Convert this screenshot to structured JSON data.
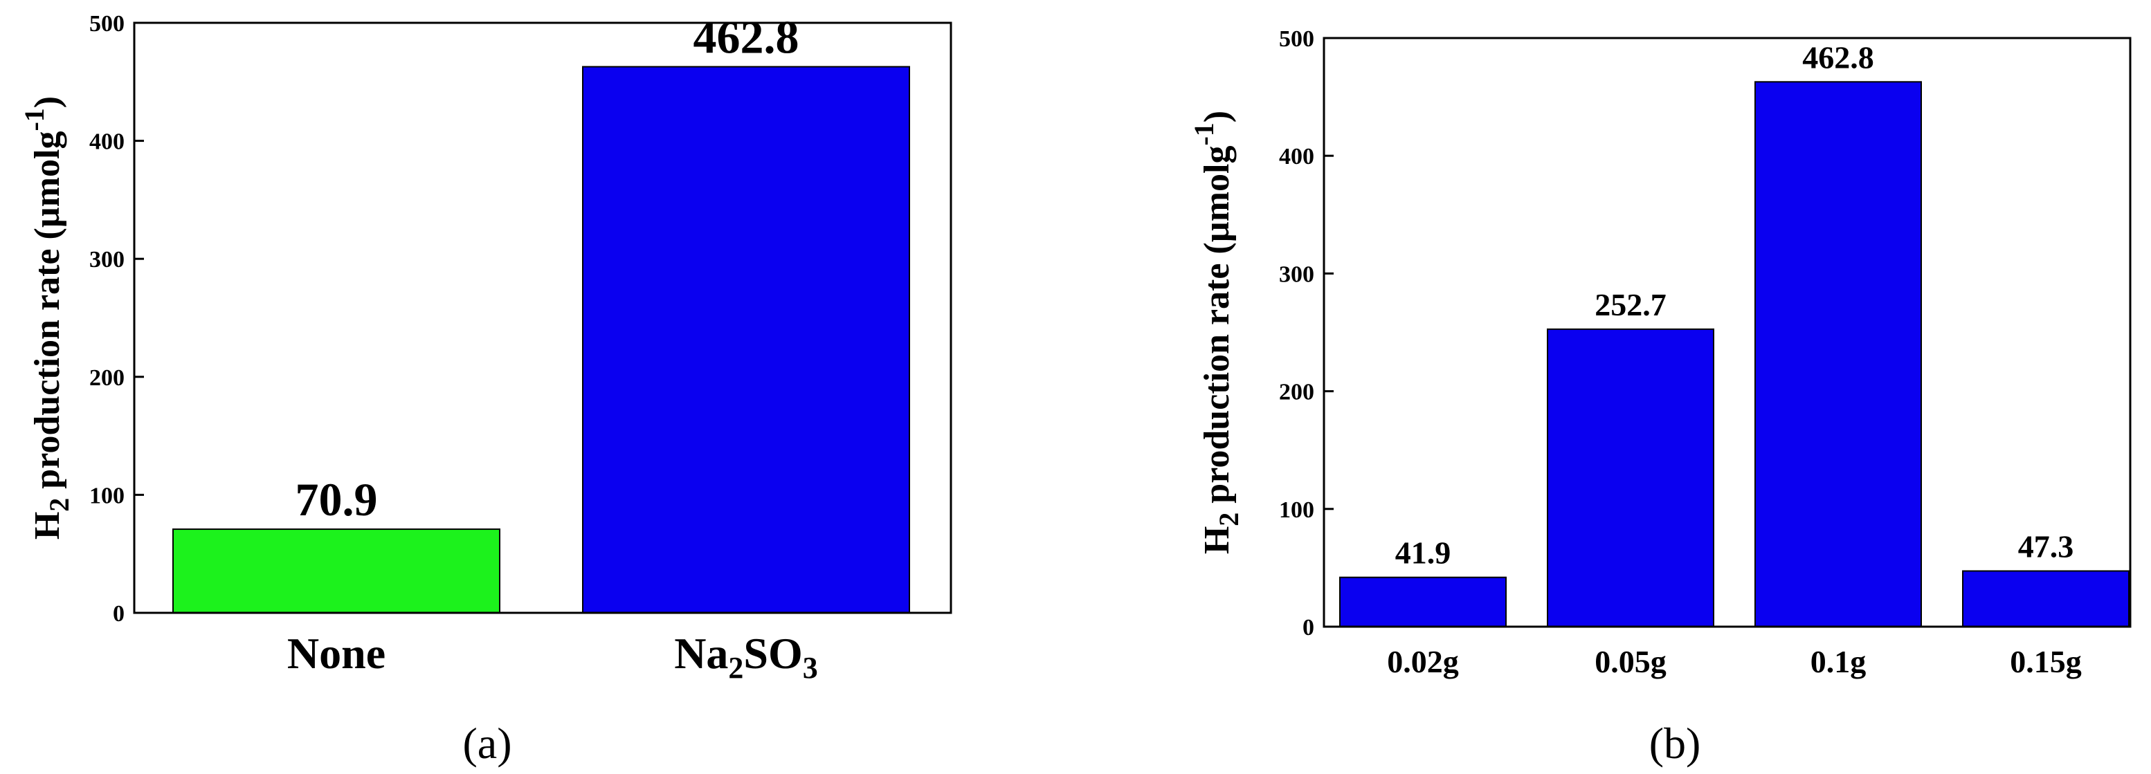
{
  "chart_data": [
    {
      "type": "bar",
      "panel": "(a)",
      "categories": [
        "None",
        "Na2SO3"
      ],
      "category_display": [
        {
          "main": "None",
          "parts": []
        },
        {
          "main": "Na",
          "parts": [
            {
              "t": "2",
              "sub": true
            },
            {
              "t": "SO",
              "sub": false
            },
            {
              "t": "3",
              "sub": true
            }
          ]
        }
      ],
      "values": [
        70.9,
        462.8
      ],
      "data_labels": [
        "70.9",
        "462.8"
      ],
      "bar_colors": [
        "#1CF21C",
        "#0A00F0"
      ],
      "ylabel": {
        "prefix": "H",
        "sub": "2",
        "text": " production rate (µmolg",
        "sup": "-1",
        "suffix": ")"
      },
      "ylim": [
        0,
        500
      ],
      "yticks": [
        0,
        100,
        200,
        300,
        400,
        500
      ],
      "grid": false
    },
    {
      "type": "bar",
      "panel": "(b)",
      "categories": [
        "0.02g",
        "0.05g",
        "0.1g",
        "0.15g"
      ],
      "values": [
        41.9,
        252.7,
        462.8,
        47.3
      ],
      "data_labels": [
        "41.9",
        "252.7",
        "462.8",
        "47.3"
      ],
      "bar_colors": [
        "#0A00F0",
        "#0A00F0",
        "#0A00F0",
        "#0A00F0"
      ],
      "ylabel": {
        "prefix": "H",
        "sub": "2",
        "text": " production rate (µmolg",
        "sup": "-1",
        "suffix": ")"
      },
      "ylim": [
        0,
        500
      ],
      "yticks": [
        0,
        100,
        200,
        300,
        400,
        500
      ],
      "grid": false
    }
  ]
}
